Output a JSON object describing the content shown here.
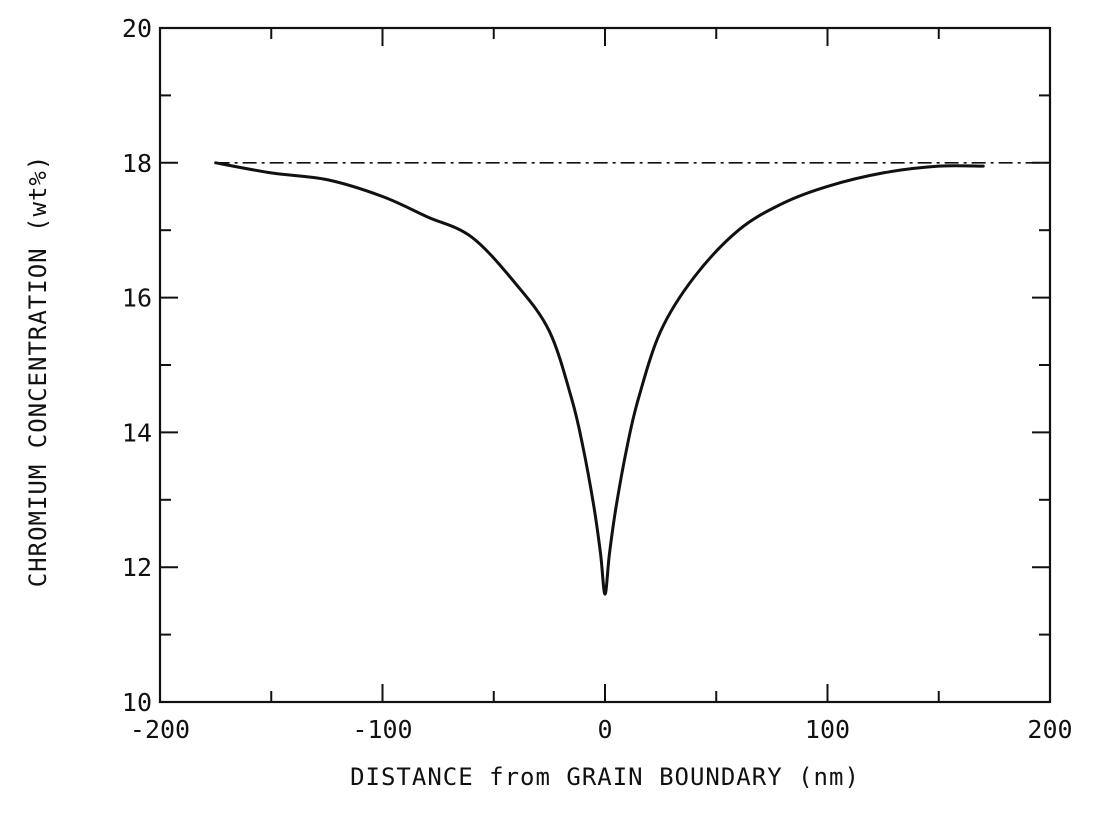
{
  "chart_data": {
    "type": "line",
    "title": "",
    "xlabel": "DISTANCE from GRAIN BOUNDARY (nm)",
    "ylabel": "CHROMIUM CONCENTRATION (wt%)",
    "xlim": [
      -200,
      200
    ],
    "ylim": [
      10,
      20
    ],
    "x_ticks": [
      -200,
      -100,
      0,
      100,
      200
    ],
    "y_ticks": [
      10,
      12,
      14,
      16,
      18,
      20
    ],
    "x_minor_step": 50,
    "y_minor_step": 1,
    "grid": false,
    "colors": {
      "line": "#111111",
      "axis": "#111111",
      "background": "#ffffff"
    },
    "series": [
      {
        "style": "solid",
        "x": [
          -175,
          -150,
          -125,
          -100,
          -80,
          -60,
          -40,
          -25,
          -15,
          -10,
          -5,
          -2,
          0,
          2,
          5,
          10,
          15,
          25,
          40,
          60,
          80,
          100,
          125,
          150,
          170
        ],
        "y": [
          18.0,
          17.85,
          17.75,
          17.5,
          17.2,
          16.9,
          16.2,
          15.5,
          14.5,
          13.8,
          12.9,
          12.2,
          11.6,
          12.2,
          12.9,
          13.8,
          14.5,
          15.5,
          16.3,
          17.0,
          17.4,
          17.65,
          17.85,
          17.95,
          17.95
        ]
      },
      {
        "style": "dash-dot",
        "x": [
          -175,
          200
        ],
        "y": [
          18.0,
          18.0
        ]
      }
    ]
  }
}
